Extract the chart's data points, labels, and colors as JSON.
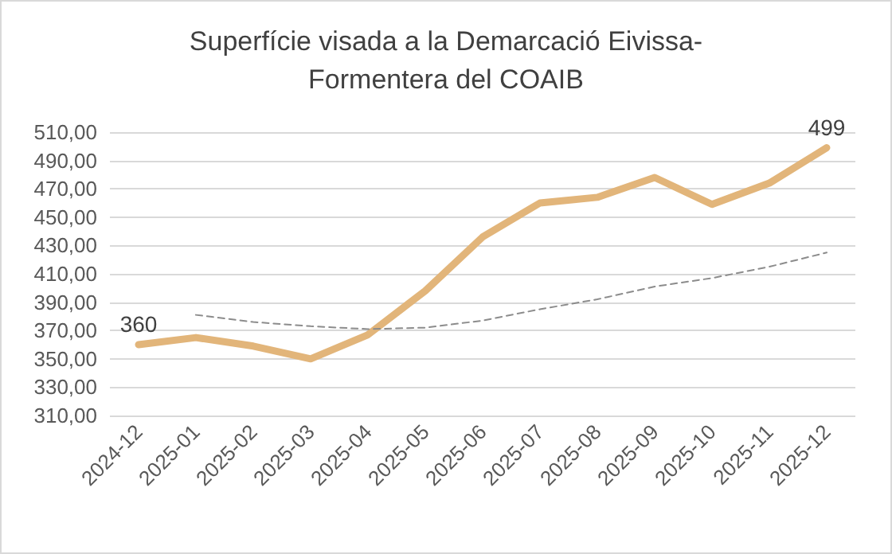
{
  "chart_data": {
    "type": "line",
    "title": "Superfície visada a la Demarcació Eivissa-\nFormentera del COAIB",
    "categories": [
      "2024-12",
      "2025-01",
      "2025-02",
      "2025-03",
      "2025-04",
      "2025-05",
      "2025-06",
      "2025-07",
      "2025-08",
      "2025-09",
      "2025-10",
      "2025-11",
      "2025-12"
    ],
    "series": [
      {
        "color": "#e2b57a",
        "line_style": "solid",
        "values": [
          360,
          365,
          359,
          350,
          367,
          398,
          436,
          460,
          464,
          478,
          459,
          474,
          499
        ],
        "value_labels": [
          "360",
          null,
          null,
          null,
          null,
          null,
          null,
          null,
          null,
          null,
          null,
          null,
          "499"
        ]
      },
      {
        "color": "#8c8c8c",
        "line_style": "dashed",
        "values": [
          null,
          381,
          376,
          373,
          371,
          372,
          377,
          385,
          392,
          401,
          407,
          415,
          425
        ]
      }
    ],
    "ylim": [
      310,
      510
    ],
    "yticks": [
      {
        "value": 310,
        "label": "310,00"
      },
      {
        "value": 330,
        "label": "330,00"
      },
      {
        "value": 350,
        "label": "350,00"
      },
      {
        "value": 370,
        "label": "370,00"
      },
      {
        "value": 390,
        "label": "390,00"
      },
      {
        "value": 410,
        "label": "410,00"
      },
      {
        "value": 430,
        "label": "430,00"
      },
      {
        "value": 450,
        "label": "450,00"
      },
      {
        "value": 470,
        "label": "470,00"
      },
      {
        "value": 490,
        "label": "490,00"
      },
      {
        "value": 510,
        "label": "510,00"
      }
    ],
    "grid": "y",
    "marker": "none"
  }
}
